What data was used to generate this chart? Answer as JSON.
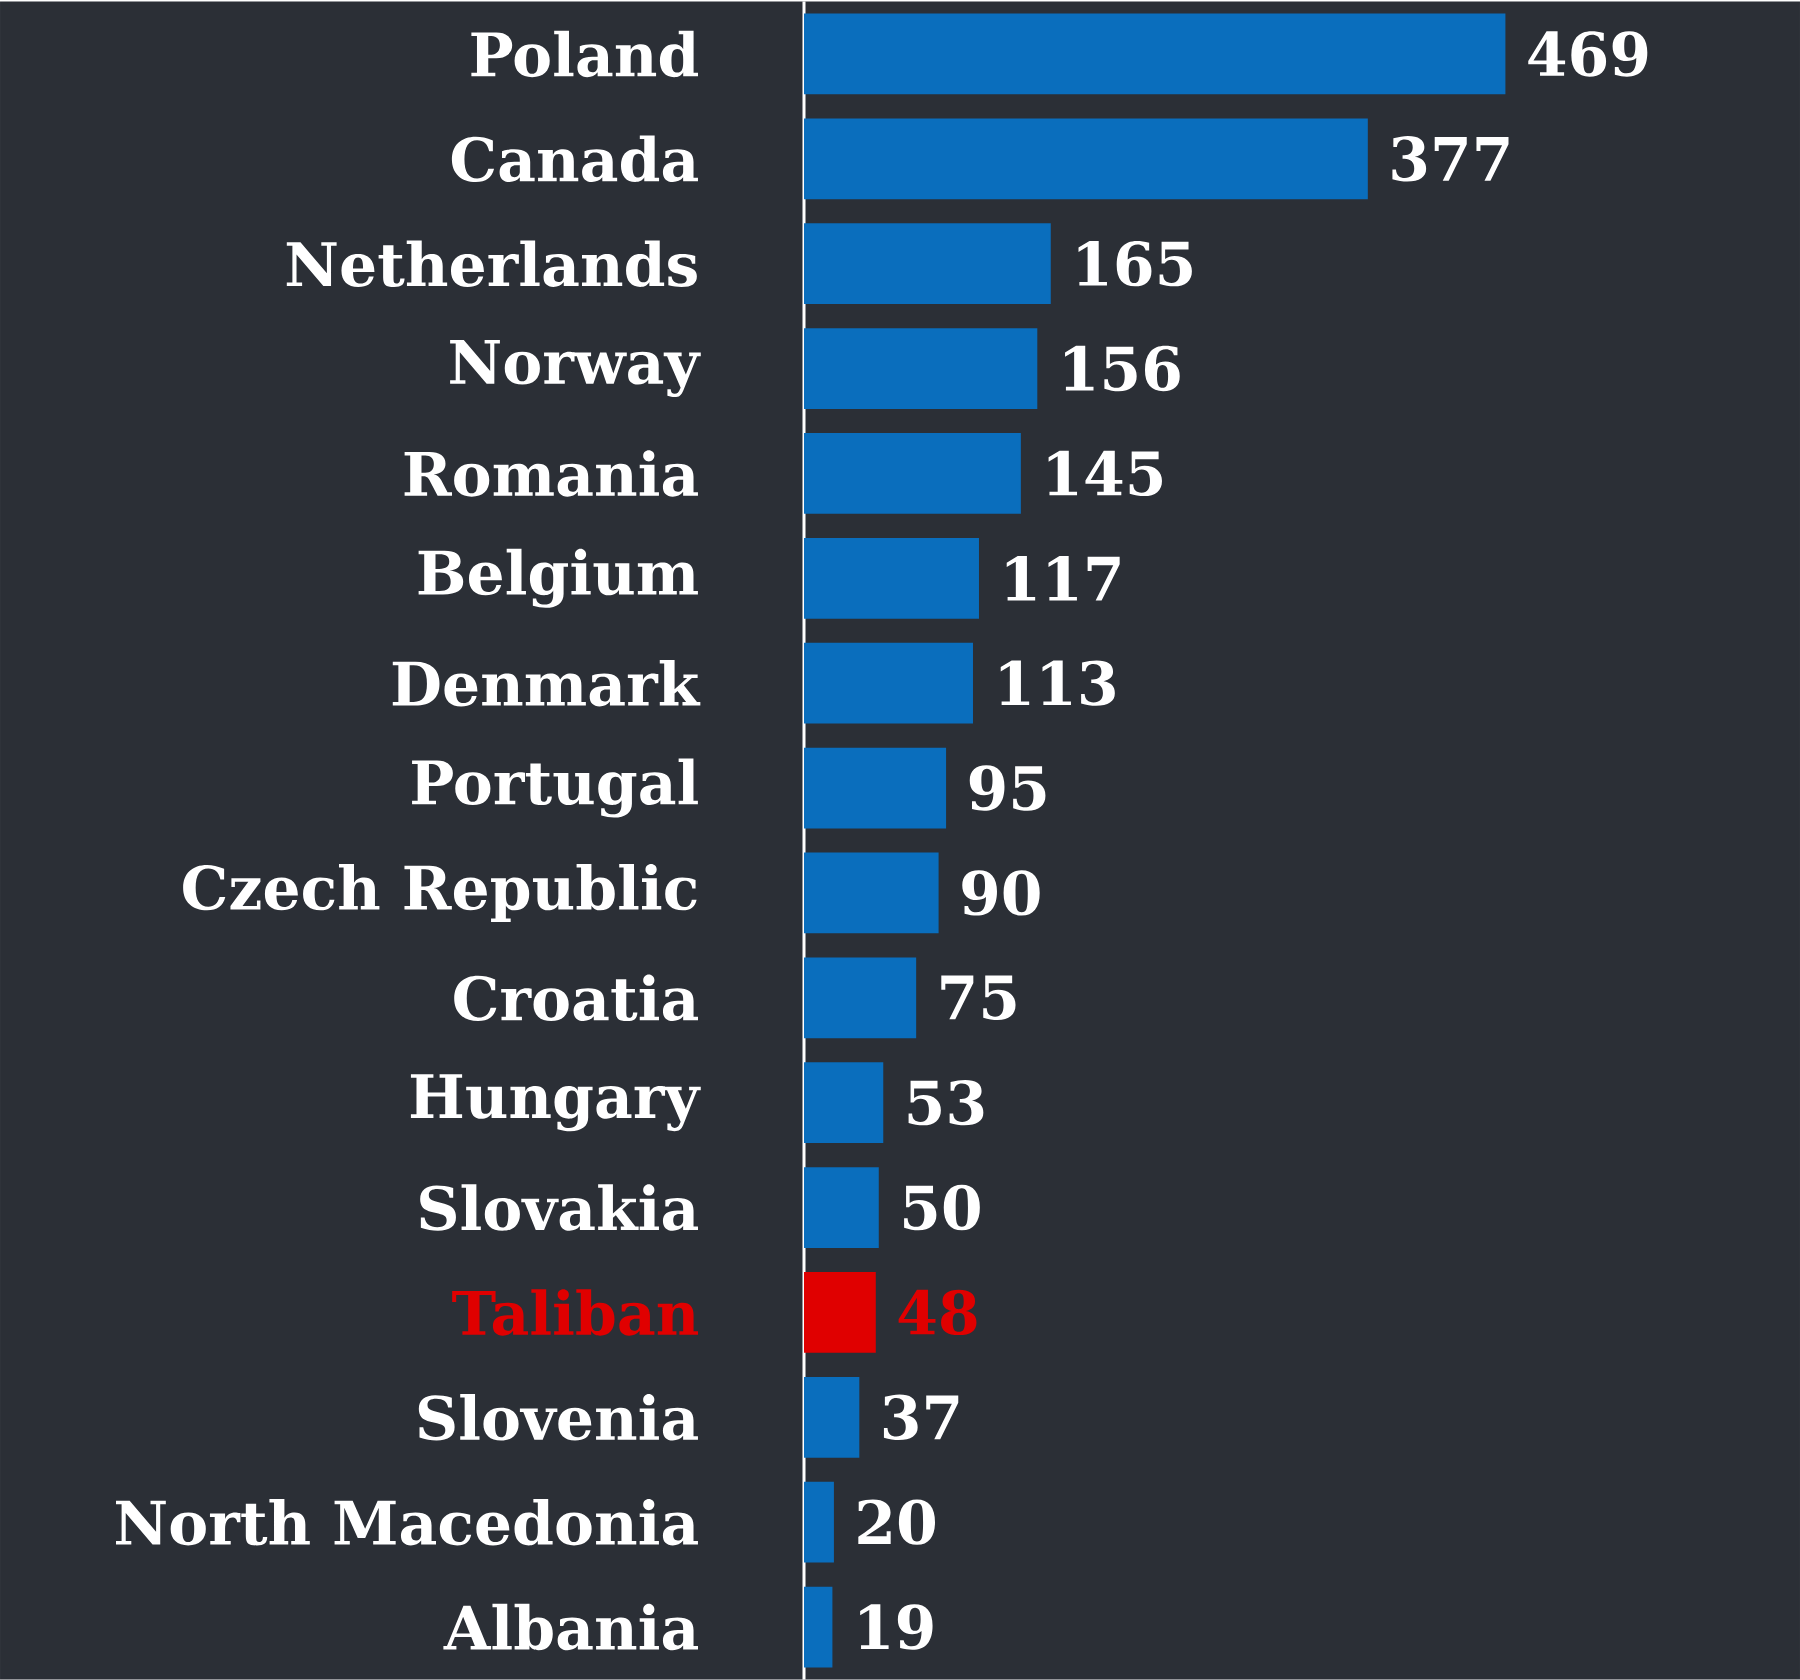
{
  "chart_data": {
    "type": "bar",
    "orientation": "horizontal",
    "categories": [
      "Poland",
      "Canada",
      "Netherlands",
      "Norway",
      "Romania",
      "Belgium",
      "Denmark",
      "Portugal",
      "Czech Republic",
      "Croatia",
      "Hungary",
      "Slovakia",
      "Taliban",
      "Slovenia",
      "North Macedonia",
      "Albania"
    ],
    "values": [
      469,
      377,
      165,
      156,
      145,
      117,
      113,
      95,
      90,
      75,
      53,
      50,
      48,
      37,
      20,
      19
    ],
    "color": "#0a6ebd",
    "colors": [
      "#0a6ebd",
      "#0a6ebd",
      "#0a6ebd",
      "#0a6ebd",
      "#0a6ebd",
      "#0a6ebd",
      "#0a6ebd",
      "#0a6ebd",
      "#0a6ebd",
      "#0a6ebd",
      "#0a6ebd",
      "#0a6ebd",
      "#e00000",
      "#0a6ebd",
      "#0a6ebd",
      "#0a6ebd"
    ],
    "data_labels": true
  }
}
